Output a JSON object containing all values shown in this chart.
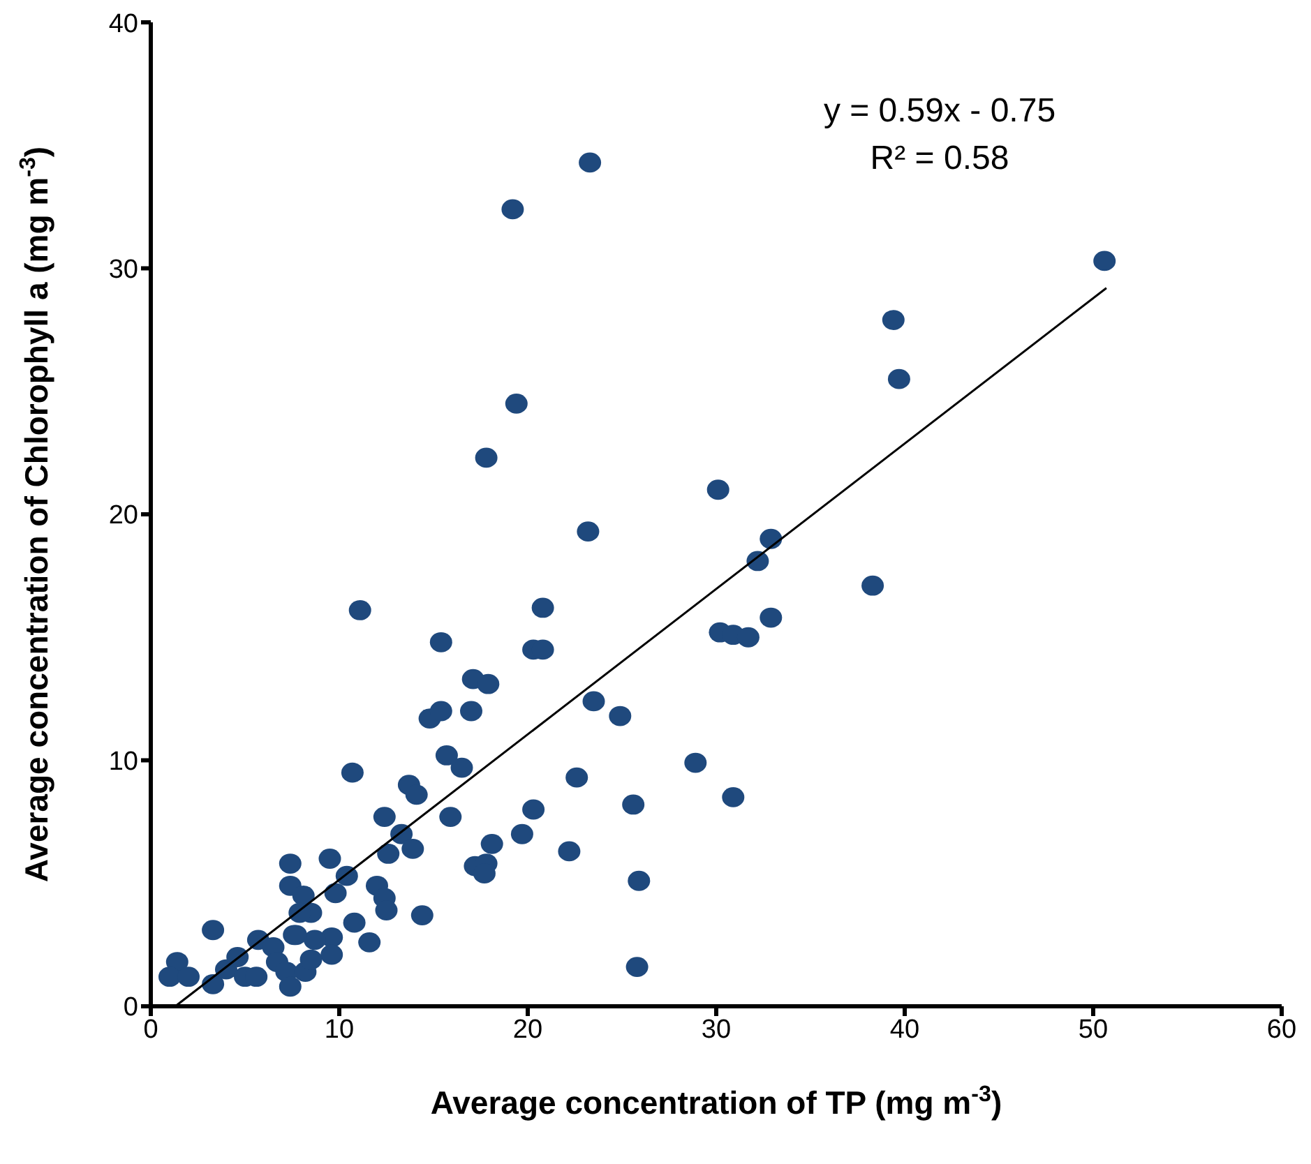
{
  "chart_data": {
    "type": "scatter",
    "xlabel": "Average concentration of TP (mg m$^{-3}$)",
    "ylabel": "Average concentration of Chlorophyll a (mg m$^{-3}$)",
    "xlim": [
      0,
      60
    ],
    "xticks": [
      0,
      10,
      20,
      30,
      40,
      50,
      60
    ],
    "ylim": [
      0,
      40
    ],
    "yticks": [
      0,
      10,
      20,
      30,
      40
    ],
    "marker": "circle",
    "annotations": [
      "y = 0.59x - 0.75",
      "R² = 0.58"
    ],
    "series": [
      {
        "color": "#1f497d",
        "x": [
          50.6,
          23.3,
          19.2,
          39.4,
          39.7,
          19.4,
          17.8,
          30.1,
          23.2,
          32.9,
          32.2,
          38.3,
          11.1,
          20.8,
          32.9,
          30.2,
          30.9,
          31.7,
          15.4,
          20.3,
          20.8,
          17.1,
          17.9,
          23.5,
          24.9,
          14.8,
          15.4,
          17.0,
          15.7,
          16.5,
          28.9,
          10.7,
          13.7,
          14.1,
          22.6,
          30.9,
          25.6,
          20.3,
          12.4,
          15.9,
          13.3,
          19.7,
          18.1,
          13.9,
          12.6,
          22.2,
          17.2,
          17.8,
          17.7,
          25.9,
          25.8,
          7.4,
          9.5,
          10.4,
          9.8,
          12.0,
          12.4,
          12.5,
          14.4,
          10.8,
          11.6,
          7.4,
          8.1,
          8.5,
          7.6,
          9.6,
          8.7,
          9.6,
          3.3,
          1.4,
          1.0,
          2.0,
          3.3,
          4.0,
          4.6,
          5.0,
          5.6,
          5.7,
          6.5,
          6.7,
          7.2,
          7.4,
          8.2,
          8.5,
          7.7,
          7.9
        ],
        "values": [
          30.3,
          34.3,
          32.4,
          27.9,
          25.5,
          24.5,
          22.3,
          21.0,
          19.3,
          19.0,
          18.1,
          17.1,
          16.1,
          16.2,
          15.8,
          15.2,
          15.1,
          15.0,
          14.8,
          14.5,
          14.5,
          13.3,
          13.1,
          12.4,
          11.8,
          11.7,
          12.0,
          12.0,
          10.2,
          9.7,
          9.9,
          9.5,
          9.0,
          8.6,
          9.3,
          8.5,
          8.2,
          8.0,
          7.7,
          7.7,
          7.0,
          7.0,
          6.6,
          6.4,
          6.2,
          6.3,
          5.7,
          5.8,
          5.4,
          5.1,
          1.6,
          5.8,
          6.0,
          5.3,
          4.6,
          4.9,
          4.4,
          3.9,
          3.7,
          3.4,
          2.6,
          4.9,
          4.5,
          3.8,
          2.9,
          2.8,
          2.7,
          2.1,
          3.1,
          1.8,
          1.2,
          1.2,
          0.9,
          1.5,
          2.0,
          1.2,
          1.2,
          2.7,
          2.4,
          1.8,
          1.4,
          0.8,
          1.4,
          1.9,
          2.9,
          3.8
        ]
      },
      {
        "type": "line",
        "color": "#000000",
        "marker": "none",
        "x": [
          1.3,
          50.7
        ],
        "values": [
          0,
          29.2
        ]
      }
    ]
  }
}
